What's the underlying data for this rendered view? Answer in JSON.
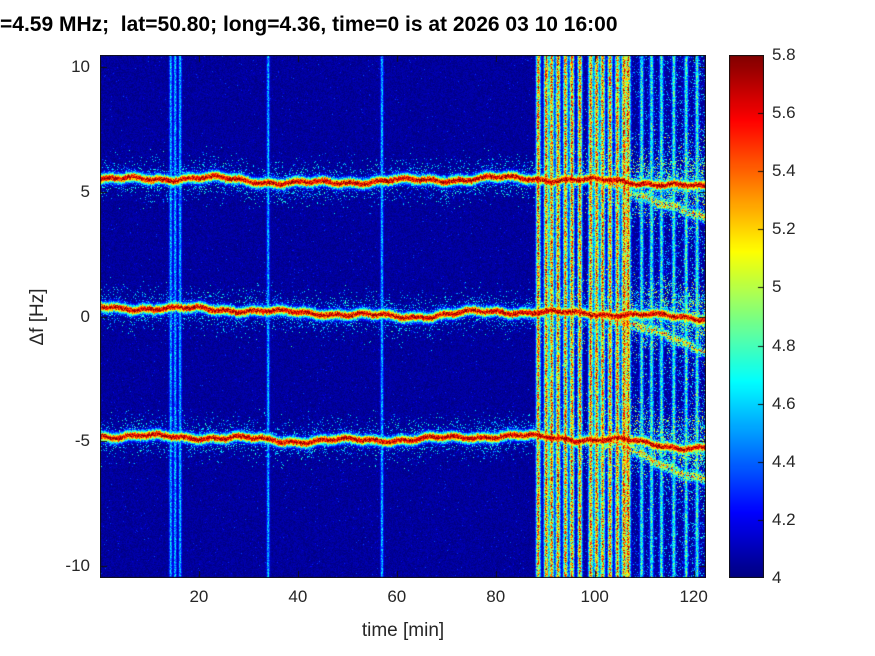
{
  "styles": {
    "background": "#ffffff",
    "title_color": "#000000",
    "text_color": "#262626",
    "colormap": "jet"
  },
  "chart_data": {
    "type": "heatmap",
    "title": "=4.59 MHz;  lat=50.80; long=4.36, time=0 is at 2026 03 10 16:00",
    "xlabel": "time [min]",
    "ylabel": "Δf [Hz]",
    "xlim": [
      0,
      122.5
    ],
    "ylim": [
      -10.5,
      10.5
    ],
    "x_ticks": [
      20,
      40,
      60,
      80,
      100,
      120
    ],
    "y_ticks": [
      10,
      5,
      0,
      -5,
      -10
    ],
    "grid": false,
    "colorbar": {
      "min": 4,
      "max": 5.8,
      "ticks": [
        4,
        4.2,
        4.4,
        4.6,
        4.8,
        5,
        5.2,
        5.4,
        5.6,
        5.8
      ],
      "colormap": "jet",
      "position": "right"
    },
    "background_level": 4.05,
    "traces": [
      {
        "name": "upper-doppler-trace",
        "approx_center_hz": 5.5,
        "control_points_hz": [
          5.5,
          5.55,
          5.35,
          5.45,
          5.55,
          5.45,
          5.2
        ],
        "peak_value": 5.8
      },
      {
        "name": "carrier-doppler-trace",
        "approx_center_hz": 0.2,
        "control_points_hz": [
          0.35,
          0.3,
          0.15,
          0.0,
          0.2,
          0.1,
          -0.05
        ],
        "peak_value": 5.8
      },
      {
        "name": "lower-doppler-trace",
        "approx_center_hz": -4.9,
        "control_points_hz": [
          -4.8,
          -4.85,
          -5.0,
          -4.95,
          -4.8,
          -4.95,
          -5.3
        ],
        "peak_value": 5.8
      }
    ],
    "interference": {
      "weak_stripes_min": [
        14.3,
        15.2,
        16.2,
        34.0,
        57.0
      ],
      "strong_stripes_min": [
        88.6,
        90.2,
        91.3,
        92.6,
        94.1,
        95.4,
        97.0,
        99.2,
        100.4,
        101.6,
        103.1,
        104.6,
        105.9,
        106.8
      ],
      "moderate_stripes_min": [
        109.5,
        111.5,
        113.5,
        116.0,
        118.5,
        120.7
      ],
      "noisy_region_start_min": 88
    }
  }
}
